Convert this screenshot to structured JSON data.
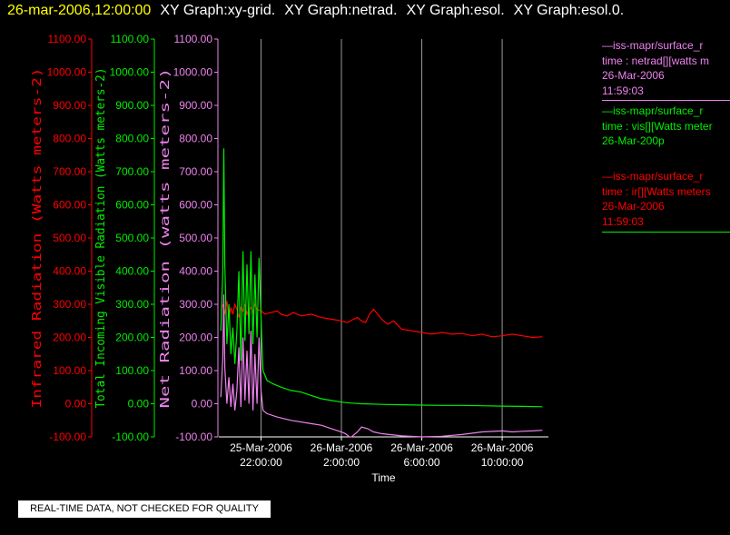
{
  "header": {
    "timestamp": "26-mar-2006,12:00:00",
    "graph_titles": [
      "XY Graph:xy-grid.",
      "XY Graph:netrad.",
      "XY Graph:esol.",
      "XY Graph:esol.0."
    ]
  },
  "legend": [
    {
      "title": "—iss-mapr/surface_r",
      "line1": "time : netrad[][watts m",
      "line2": "26-Mar-2006",
      "line3": "11:59:03",
      "color": "#ee82ee"
    },
    {
      "title": "—iss-mapr/surface_r",
      "line1": "time : vis[][Watts meter",
      "line2": "26-Mar-200p",
      "line3": "",
      "color": "#00ee00"
    },
    {
      "title": "—iss-mapr/surface_r",
      "line1": "time : ir[][Watts meters",
      "line2": "26-Mar-2006",
      "line3": "11:59:03",
      "color": "#ff0000"
    }
  ],
  "disclaimer": "REAL-TIME DATA, NOT CHECKED FOR QUALITY",
  "chart_data": {
    "type": "line",
    "xlabel": "Time",
    "x_ticks": [
      {
        "line1": "25-Mar-2006",
        "line2": "22:00:00",
        "hour": 0
      },
      {
        "line1": "26-Mar-2006",
        "line2": "2:00:00",
        "hour": 4
      },
      {
        "line1": "26-Mar-2006",
        "line2": "6:00:00",
        "hour": 8
      },
      {
        "line1": "26-Mar-2006",
        "line2": "10:00:00",
        "hour": 12
      }
    ],
    "x_unit": "hours since 25-Mar-2006 22:00:00",
    "xlim": [
      -2.1,
      14.3
    ],
    "grid": "vertical",
    "y_axes": [
      {
        "label": "Infrared Radiation (Watts meters-2)",
        "color": "#ff0000",
        "ylim": [
          -100,
          1100
        ],
        "ticks": [
          "-100.00",
          "0.00",
          "100.00",
          "200.00",
          "300.00",
          "400.00",
          "500.00",
          "600.00",
          "700.00",
          "800.00",
          "900.00",
          "1000.00",
          "1100.00"
        ]
      },
      {
        "label": "Total Incoming Visible Radiation (Watts meters-2)",
        "color": "#00ee00",
        "ylim": [
          -100,
          1100
        ],
        "ticks": [
          "-100.00",
          "0.00",
          "100.00",
          "200.00",
          "300.00",
          "400.00",
          "500.00",
          "600.00",
          "700.00",
          "800.00",
          "900.00",
          "1000.00",
          "1100.00"
        ]
      },
      {
        "label": "Net Radiation (watts meters-2)",
        "color": "#ee82ee",
        "ylim": [
          -100,
          1100
        ],
        "ticks": [
          "-100.00",
          "0.00",
          "100.00",
          "200.00",
          "300.00",
          "400.00",
          "500.00",
          "600.00",
          "700.00",
          "800.00",
          "900.00",
          "1000.00",
          "1100.00"
        ]
      }
    ],
    "series": [
      {
        "name": "ir",
        "color": "#ff0000",
        "points": [
          [
            -2.0,
            280
          ],
          [
            -1.9,
            300
          ],
          [
            -1.8,
            270
          ],
          [
            -1.7,
            310
          ],
          [
            -1.6,
            260
          ],
          [
            -1.5,
            290
          ],
          [
            -1.4,
            270
          ],
          [
            -1.3,
            300
          ],
          [
            -1.2,
            285
          ],
          [
            -1.1,
            260
          ],
          [
            -1.0,
            290
          ],
          [
            -0.9,
            280
          ],
          [
            -0.8,
            300
          ],
          [
            -0.7,
            270
          ],
          [
            -0.6,
            285
          ],
          [
            -0.5,
            290
          ],
          [
            -0.4,
            275
          ],
          [
            -0.3,
            300
          ],
          [
            -0.2,
            285
          ],
          [
            0.0,
            280
          ],
          [
            0.2,
            270
          ],
          [
            0.5,
            275
          ],
          [
            0.8,
            280
          ],
          [
            1.0,
            270
          ],
          [
            1.3,
            265
          ],
          [
            1.6,
            275
          ],
          [
            2.0,
            265
          ],
          [
            2.5,
            270
          ],
          [
            3.0,
            260
          ],
          [
            3.5,
            255
          ],
          [
            4.0,
            250
          ],
          [
            4.3,
            245
          ],
          [
            4.6,
            255
          ],
          [
            4.8,
            260
          ],
          [
            5.0,
            250
          ],
          [
            5.2,
            245
          ],
          [
            5.4,
            270
          ],
          [
            5.6,
            285
          ],
          [
            5.8,
            270
          ],
          [
            6.0,
            255
          ],
          [
            6.3,
            240
          ],
          [
            6.6,
            250
          ],
          [
            7.0,
            225
          ],
          [
            7.5,
            220
          ],
          [
            8.0,
            215
          ],
          [
            8.5,
            210
          ],
          [
            9.0,
            215
          ],
          [
            9.5,
            210
          ],
          [
            10.0,
            212
          ],
          [
            10.5,
            205
          ],
          [
            11.0,
            210
          ],
          [
            11.5,
            202
          ],
          [
            12.0,
            205
          ],
          [
            12.5,
            210
          ],
          [
            13.0,
            205
          ],
          [
            13.5,
            200
          ],
          [
            14.0,
            202
          ]
        ]
      },
      {
        "name": "vis",
        "color": "#00ee00",
        "points": [
          [
            -2.0,
            220
          ],
          [
            -1.9,
            400
          ],
          [
            -1.85,
            770
          ],
          [
            -1.8,
            420
          ],
          [
            -1.7,
            180
          ],
          [
            -1.6,
            300
          ],
          [
            -1.5,
            150
          ],
          [
            -1.4,
            230
          ],
          [
            -1.3,
            120
          ],
          [
            -1.2,
            220
          ],
          [
            -1.1,
            400
          ],
          [
            -1.0,
            130
          ],
          [
            -0.9,
            460
          ],
          [
            -0.8,
            190
          ],
          [
            -0.7,
            420
          ],
          [
            -0.6,
            210
          ],
          [
            -0.5,
            460
          ],
          [
            -0.4,
            180
          ],
          [
            -0.3,
            390
          ],
          [
            -0.2,
            200
          ],
          [
            -0.1,
            440
          ],
          [
            0.0,
            260
          ],
          [
            0.05,
            170
          ],
          [
            0.1,
            100
          ],
          [
            0.3,
            70
          ],
          [
            0.6,
            60
          ],
          [
            1.0,
            50
          ],
          [
            1.5,
            40
          ],
          [
            2.0,
            35
          ],
          [
            2.5,
            25
          ],
          [
            3.0,
            15
          ],
          [
            3.5,
            10
          ],
          [
            4.0,
            5
          ],
          [
            4.5,
            2
          ],
          [
            5.0,
            0
          ],
          [
            6.0,
            -2
          ],
          [
            7.0,
            -3
          ],
          [
            8.0,
            -4
          ],
          [
            9.0,
            -5
          ],
          [
            10.0,
            -5
          ],
          [
            11.0,
            -6
          ],
          [
            12.0,
            -7
          ],
          [
            13.0,
            -8
          ],
          [
            14.0,
            -9
          ]
        ]
      },
      {
        "name": "netrad",
        "color": "#ee82ee",
        "points": [
          [
            -2.0,
            20
          ],
          [
            -1.9,
            140
          ],
          [
            -1.85,
            330
          ],
          [
            -1.8,
            110
          ],
          [
            -1.7,
            0
          ],
          [
            -1.6,
            80
          ],
          [
            -1.5,
            -10
          ],
          [
            -1.4,
            60
          ],
          [
            -1.3,
            -20
          ],
          [
            -1.2,
            40
          ],
          [
            -1.1,
            170
          ],
          [
            -1.0,
            -10
          ],
          [
            -0.9,
            200
          ],
          [
            -0.8,
            10
          ],
          [
            -0.7,
            160
          ],
          [
            -0.6,
            0
          ],
          [
            -0.5,
            220
          ],
          [
            -0.4,
            -20
          ],
          [
            -0.3,
            150
          ],
          [
            -0.2,
            0
          ],
          [
            -0.1,
            200
          ],
          [
            0.0,
            40
          ],
          [
            0.1,
            -20
          ],
          [
            0.3,
            -30
          ],
          [
            0.8,
            -40
          ],
          [
            1.5,
            -50
          ],
          [
            2.5,
            -60
          ],
          [
            3.0,
            -65
          ],
          [
            3.5,
            -75
          ],
          [
            4.0,
            -85
          ],
          [
            4.2,
            -90
          ],
          [
            4.4,
            -100
          ],
          [
            4.5,
            -100
          ],
          [
            4.8,
            -85
          ],
          [
            5.0,
            -70
          ],
          [
            5.3,
            -75
          ],
          [
            5.6,
            -85
          ],
          [
            6.0,
            -90
          ],
          [
            7.0,
            -97
          ],
          [
            8.0,
            -100
          ],
          [
            9.0,
            -98
          ],
          [
            10.0,
            -93
          ],
          [
            11.0,
            -85
          ],
          [
            12.0,
            -82
          ],
          [
            12.5,
            -85
          ],
          [
            13.0,
            -83
          ],
          [
            13.5,
            -82
          ],
          [
            14.0,
            -80
          ]
        ]
      }
    ]
  }
}
